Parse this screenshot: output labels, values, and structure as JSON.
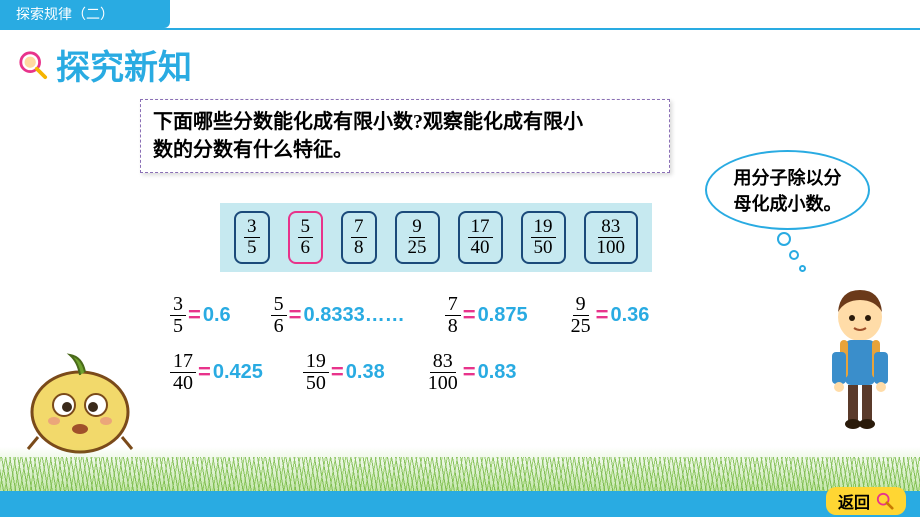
{
  "header": {
    "chapter": "探索规律（二）"
  },
  "title": {
    "text": "探究新知"
  },
  "question": {
    "line1": "下面哪些分数能化成有限小数?观察能化成有限小",
    "line2": "数的分数有什么特征。"
  },
  "bubble": {
    "line1": "用分子除以分",
    "line2": "母化成小数。"
  },
  "fractions_row": {
    "background_color": "#c6e9f0",
    "normal_border": "#1b4a7a",
    "highlight_border": "#e8338b",
    "items": [
      {
        "num": "3",
        "den": "5",
        "highlight": false
      },
      {
        "num": "5",
        "den": "6",
        "highlight": true
      },
      {
        "num": "7",
        "den": "8",
        "highlight": false
      },
      {
        "num": "9",
        "den": "25",
        "highlight": false
      },
      {
        "num": "17",
        "den": "40",
        "highlight": false
      },
      {
        "num": "19",
        "den": "50",
        "highlight": false
      },
      {
        "num": "83",
        "den": "100",
        "highlight": false
      }
    ]
  },
  "equations": {
    "eq_color": "#e8338b",
    "val_color": "#29abe2",
    "rows": [
      [
        {
          "num": "3",
          "den": "5",
          "val": "0.6"
        },
        {
          "num": "5",
          "den": "6",
          "val": "0.8333……"
        },
        {
          "num": "7",
          "den": "8",
          "val": "0.875"
        },
        {
          "num": "9",
          "den": "25",
          "val": "0.36"
        }
      ],
      [
        {
          "num": "17",
          "den": "40",
          "val": "0.425"
        },
        {
          "num": "19",
          "den": "50",
          "val": "0.38"
        },
        {
          "num": "83",
          "den": "100",
          "val": "0.83"
        }
      ]
    ]
  },
  "footer": {
    "back": "返回"
  },
  "colors": {
    "primary": "#29abe2",
    "accent": "#e8338b",
    "yellow": "#ffd633"
  }
}
